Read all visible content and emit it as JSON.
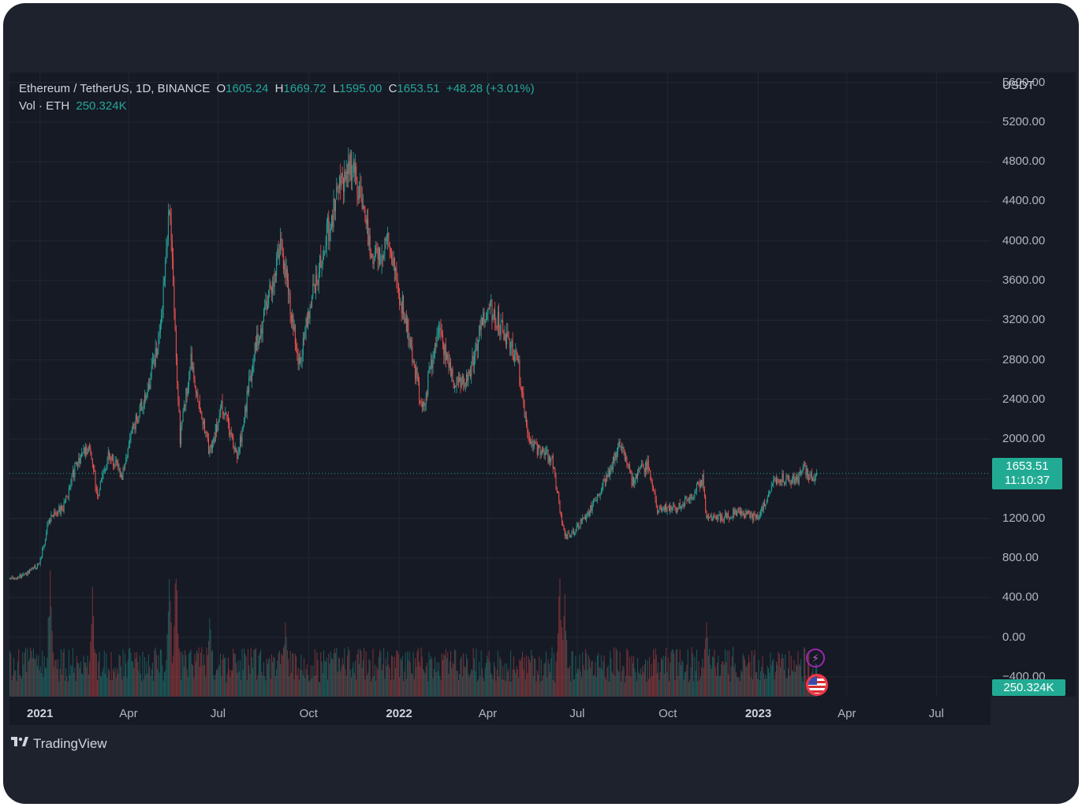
{
  "legend": {
    "symbol": "Ethereum / TetherUS, 1D, BINANCE",
    "open_label": "O",
    "open": "1605.24",
    "high_label": "H",
    "high": "1669.72",
    "low_label": "L",
    "low": "1595.00",
    "close_label": "C",
    "close": "1653.51",
    "change": "+48.28 (+3.01%)",
    "vol_label": "Vol · ETH",
    "vol_value": "250.324K"
  },
  "price_axis": {
    "currency": "USDT",
    "ticks": [
      "5600.00",
      "5200.00",
      "4800.00",
      "4400.00",
      "4000.00",
      "3600.00",
      "3200.00",
      "2800.00",
      "2400.00",
      "2000.00",
      "1200.00",
      "800.00",
      "400.00",
      "0.00",
      "−400.00"
    ]
  },
  "last_price": {
    "price": "1653.51",
    "countdown": "11:10:37"
  },
  "volume_badge": "250.324K",
  "time_axis": {
    "ticks": [
      {
        "label": "2021",
        "major": true
      },
      {
        "label": "Apr",
        "major": false
      },
      {
        "label": "Jul",
        "major": false
      },
      {
        "label": "Oct",
        "major": false
      },
      {
        "label": "2022",
        "major": true
      },
      {
        "label": "Apr",
        "major": false
      },
      {
        "label": "Jul",
        "major": false
      },
      {
        "label": "Oct",
        "major": false
      },
      {
        "label": "2023",
        "major": true
      },
      {
        "label": "Apr",
        "major": false
      },
      {
        "label": "Jul",
        "major": false
      }
    ]
  },
  "brand": "TradingView",
  "icons": {
    "events": "lightning-icon",
    "economic": "us-flag-icon"
  },
  "colors": {
    "up": "#26a69a",
    "down": "#ef5350",
    "background": "#161a25",
    "accent": "#22ab94"
  },
  "chart_data": {
    "type": "candlestick",
    "title": "Ethereum / TetherUS, 1D, BINANCE",
    "ylabel": "USDT",
    "ylim": [
      -600,
      5700
    ],
    "last_close": 1653.51,
    "x_start": "2020-12-01",
    "x_ticks": [
      "2021-01-01",
      "2021-04-01",
      "2021-07-01",
      "2021-10-01",
      "2022-01-01",
      "2022-04-01",
      "2022-07-01",
      "2022-10-01",
      "2023-01-01",
      "2023-04-01",
      "2023-07-01"
    ],
    "price_path": [
      [
        "2020-12-01",
        590
      ],
      [
        "2020-12-15",
        620
      ],
      [
        "2020-12-31",
        740
      ],
      [
        "2021-01-10",
        1200
      ],
      [
        "2021-01-25",
        1320
      ],
      [
        "2021-02-05",
        1700
      ],
      [
        "2021-02-20",
        1950
      ],
      [
        "2021-02-28",
        1420
      ],
      [
        "2021-03-12",
        1850
      ],
      [
        "2021-03-25",
        1620
      ],
      [
        "2021-04-05",
        2100
      ],
      [
        "2021-04-20",
        2500
      ],
      [
        "2021-05-01",
        2950
      ],
      [
        "2021-05-12",
        4300
      ],
      [
        "2021-05-15",
        3700
      ],
      [
        "2021-05-23",
        2000
      ],
      [
        "2021-06-03",
        2800
      ],
      [
        "2021-06-22",
        1850
      ],
      [
        "2021-07-05",
        2350
      ],
      [
        "2021-07-20",
        1780
      ],
      [
        "2021-08-05",
        2800
      ],
      [
        "2021-08-15",
        3200
      ],
      [
        "2021-09-03",
        3950
      ],
      [
        "2021-09-21",
        2750
      ],
      [
        "2021-10-01",
        3300
      ],
      [
        "2021-10-20",
        4100
      ],
      [
        "2021-11-10",
        4800
      ],
      [
        "2021-11-25",
        4400
      ],
      [
        "2021-12-04",
        3800
      ],
      [
        "2021-12-20",
        3950
      ],
      [
        "2022-01-10",
        3100
      ],
      [
        "2022-01-24",
        2300
      ],
      [
        "2022-02-10",
        3100
      ],
      [
        "2022-02-24",
        2600
      ],
      [
        "2022-03-12",
        2600
      ],
      [
        "2022-04-01",
        3400
      ],
      [
        "2022-04-10",
        3200
      ],
      [
        "2022-05-01",
        2800
      ],
      [
        "2022-05-12",
        1950
      ],
      [
        "2022-06-05",
        1800
      ],
      [
        "2022-06-18",
        1000
      ],
      [
        "2022-06-30",
        1100
      ],
      [
        "2022-07-15",
        1300
      ],
      [
        "2022-08-01",
        1650
      ],
      [
        "2022-08-14",
        1980
      ],
      [
        "2022-08-25",
        1580
      ],
      [
        "2022-09-10",
        1750
      ],
      [
        "2022-09-20",
        1300
      ],
      [
        "2022-10-10",
        1300
      ],
      [
        "2022-10-25",
        1430
      ],
      [
        "2022-11-05",
        1600
      ],
      [
        "2022-11-09",
        1200
      ],
      [
        "2022-11-25",
        1200
      ],
      [
        "2022-12-10",
        1270
      ],
      [
        "2022-12-31",
        1200
      ],
      [
        "2023-01-15",
        1550
      ],
      [
        "2023-01-25",
        1600
      ],
      [
        "2023-02-10",
        1600
      ],
      [
        "2023-02-17",
        1700
      ],
      [
        "2023-02-24",
        1600
      ],
      [
        "2023-03-01",
        1650
      ]
    ],
    "volume_spikes": [
      [
        "2021-01-11",
        185
      ],
      [
        "2021-02-23",
        150
      ],
      [
        "2021-05-12",
        170
      ],
      [
        "2021-05-19",
        195
      ],
      [
        "2021-06-22",
        120
      ],
      [
        "2021-09-07",
        110
      ],
      [
        "2022-06-13",
        165
      ],
      [
        "2022-06-18",
        140
      ],
      [
        "2022-11-09",
        115
      ]
    ],
    "volume_last": "250.324K"
  }
}
